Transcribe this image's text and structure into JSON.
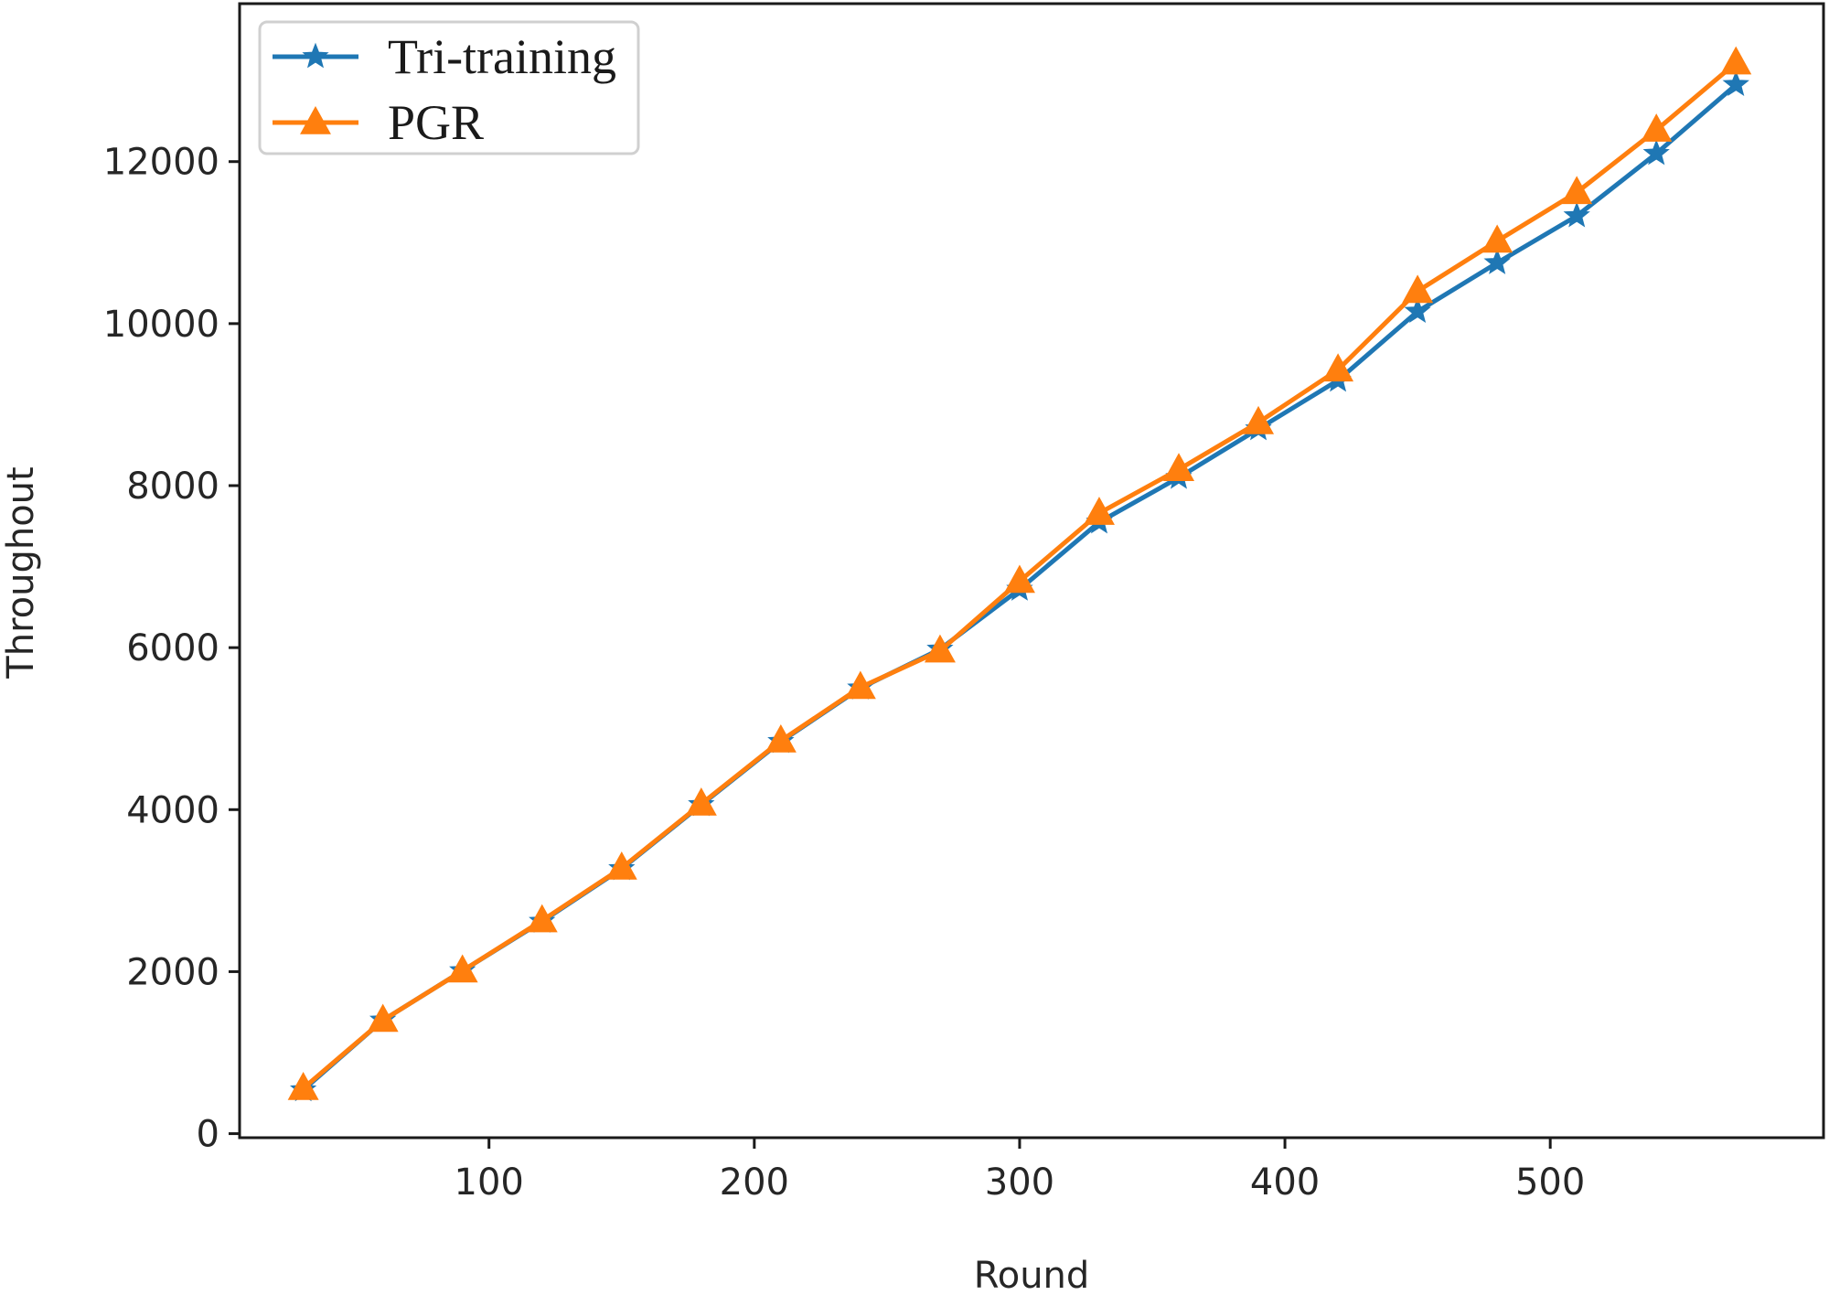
{
  "chart_data": {
    "type": "line",
    "xlabel": "Round",
    "ylabel": "Throughout",
    "xlim": [
      6,
      603
    ],
    "ylim": [
      -50,
      13950
    ],
    "xticks": [
      100,
      200,
      300,
      400,
      500
    ],
    "yticks": [
      0,
      2000,
      4000,
      6000,
      8000,
      10000,
      12000
    ],
    "grid": false,
    "legend_position": "top-left",
    "x": [
      30,
      60,
      90,
      120,
      150,
      180,
      210,
      240,
      270,
      300,
      330,
      360,
      390,
      420,
      450,
      480,
      510,
      540,
      570
    ],
    "series": [
      {
        "name": "Tri-training",
        "color": "#1f77b4",
        "marker": "star",
        "values": [
          540,
          1400,
          2010,
          2620,
          3270,
          4060,
          4840,
          5500,
          5980,
          6720,
          7550,
          8100,
          8700,
          9300,
          10150,
          10750,
          11330,
          12100,
          12950
        ]
      },
      {
        "name": "PGR",
        "color": "#ff7f0e",
        "marker": "triangle",
        "values": [
          560,
          1400,
          2010,
          2630,
          3280,
          4070,
          4850,
          5510,
          5960,
          6820,
          7660,
          8200,
          8780,
          9430,
          10400,
          11020,
          11620,
          12390,
          13220
        ]
      }
    ]
  }
}
